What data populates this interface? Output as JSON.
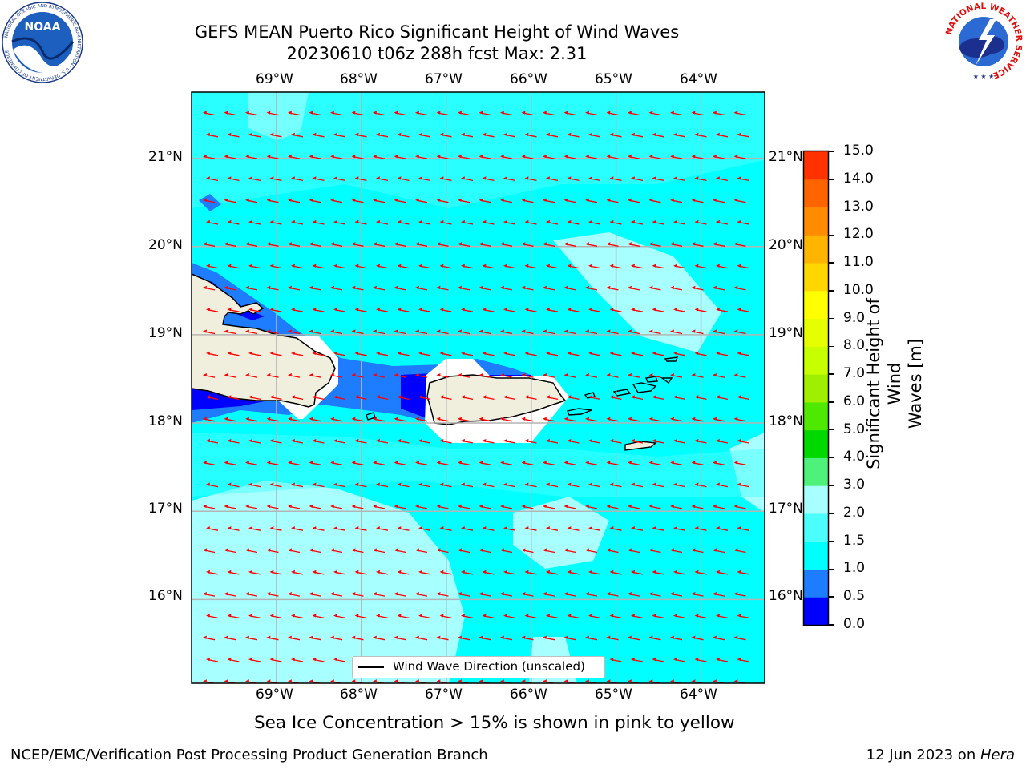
{
  "title": {
    "line1": "GEFS MEAN Puerto Rico Significant Height of Wind Waves",
    "line2": "20230610 t06z 288h fcst   Max: 2.31"
  },
  "logos": {
    "left_text": "NOAA",
    "left_ring_text": "NATIONAL OCEANIC AND ATMOSPHERIC ADMINISTRATION · U.S. DEPARTMENT OF COMMERCE",
    "right_ring_text": "NATIONAL WEATHER SERVICE"
  },
  "map": {
    "lon_labels": [
      "69°W",
      "68°W",
      "67°W",
      "66°W",
      "65°W",
      "64°W"
    ],
    "lat_labels": [
      "21°N",
      "20°N",
      "19°N",
      "18°N",
      "17°N",
      "16°N"
    ],
    "lon_range": [
      -70.0,
      -63.25
    ],
    "lat_range": [
      15.05,
      21.75
    ],
    "ocean_color": "#00ffff",
    "land_color": "#f0eedc",
    "arrow_color": "#ff0000",
    "grid": true,
    "wave_direction": "toward west (easterly trade-wind waves)"
  },
  "legend": {
    "label": "Wind Wave Direction (unscaled)",
    "placement": "bottom-center"
  },
  "colorbar": {
    "label_line1": "Significant Height of Wind",
    "label_line2": "Waves [m]",
    "ticks": [
      "0.0",
      "0.5",
      "1.0",
      "1.5",
      "2.0",
      "3.0",
      "4.0",
      "5.0",
      "6.0",
      "7.0",
      "8.0",
      "9.0",
      "10.0",
      "11.0",
      "12.0",
      "13.0",
      "14.0",
      "15.0"
    ],
    "colors": [
      "#0000ff",
      "#1e7dff",
      "#00ffff",
      "#4cffff",
      "#a8ffff",
      "#4ef27a",
      "#00d900",
      "#4ee800",
      "#9fef00",
      "#c8ff00",
      "#e6ff00",
      "#ffff00",
      "#ffd700",
      "#ffb400",
      "#ff8c00",
      "#ff6400",
      "#ff3200",
      "#ff0000"
    ]
  },
  "sea_ice_note": "Sea Ice Concentration > 15% is shown in pink to yellow",
  "footer": {
    "left": "NCEP/EMC/Verification Post Processing Product Generation Branch",
    "right_prefix": "12 Jun 2023 on ",
    "right_host": "Hera"
  }
}
